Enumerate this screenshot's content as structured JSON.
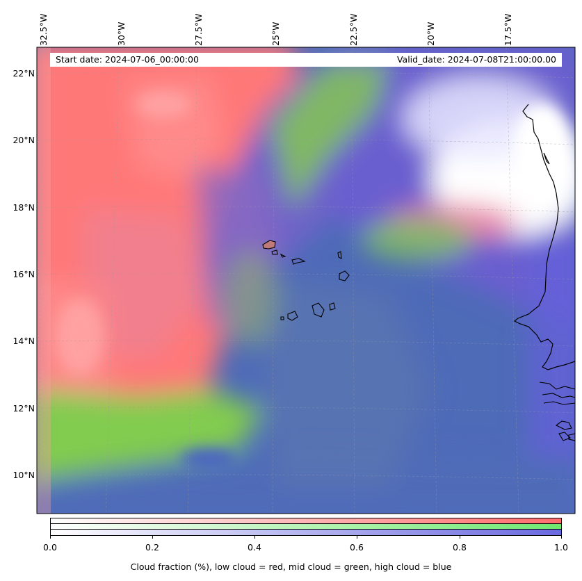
{
  "info": {
    "start_date": "Start date: 2024-07-06_00:00:00",
    "valid_date": "Valid_date: 2024-07-08T21:00:00.00"
  },
  "longitude_labels": [
    "32.5°W",
    "30°W",
    "27.5°W",
    "25°W",
    "22.5°W",
    "20°W",
    "17.5°W"
  ],
  "latitude_labels": [
    "22°N",
    "20°N",
    "18°N",
    "16°N",
    "14°N",
    "12°N",
    "10°N"
  ],
  "colorbar": {
    "ticks": [
      "0.0",
      "0.2",
      "0.4",
      "0.6",
      "0.8",
      "1.0"
    ],
    "label": "Cloud fraction (%), low cloud = red, mid cloud = green, high cloud = blue",
    "rows": [
      {
        "name": "low cloud",
        "color": "#ff6b6b"
      },
      {
        "name": "mid cloud",
        "color": "#6fe86f"
      },
      {
        "name": "high cloud",
        "color": "#6a6ae0"
      }
    ]
  },
  "colors": {
    "low_cloud": "#ff7b7b",
    "mid_cloud": "#7fd65a",
    "high_cloud": "#5566c8",
    "clear": "#ffffff",
    "coastline": "#000000"
  }
}
